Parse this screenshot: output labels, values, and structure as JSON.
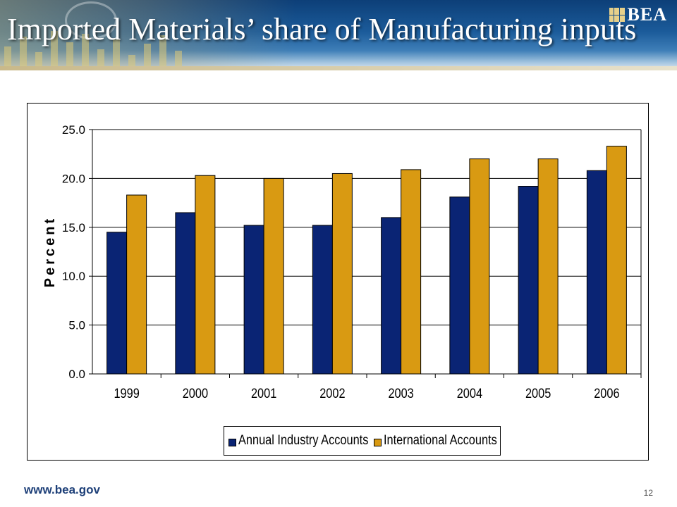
{
  "slide": {
    "title": "Imported Materials’ share of Manufacturing inputs",
    "logo_text": "BEA",
    "url": "www.bea.gov",
    "page_number": "12"
  },
  "colors": {
    "banner": "#1b5b9a",
    "annual": "#0a2474",
    "international": "#d99a12"
  },
  "chart_data": {
    "type": "bar",
    "title": "",
    "xlabel": "",
    "ylabel": "Percent",
    "ylim": [
      0,
      25
    ],
    "yticks": [
      "0.0",
      "5.0",
      "10.0",
      "15.0",
      "20.0",
      "25.0"
    ],
    "categories": [
      "1999",
      "2000",
      "2001",
      "2002",
      "2003",
      "2004",
      "2005",
      "2006"
    ],
    "grid": true,
    "legend_position": "bottom",
    "series": [
      {
        "name": "Annual Industry Accounts",
        "color": "#0a2474",
        "values": [
          14.5,
          16.5,
          15.2,
          15.2,
          16.0,
          18.1,
          19.2,
          20.8
        ]
      },
      {
        "name": "International Accounts",
        "color": "#d99a12",
        "values": [
          18.3,
          20.3,
          20.0,
          20.5,
          20.9,
          22.0,
          22.0,
          23.3
        ]
      }
    ]
  }
}
